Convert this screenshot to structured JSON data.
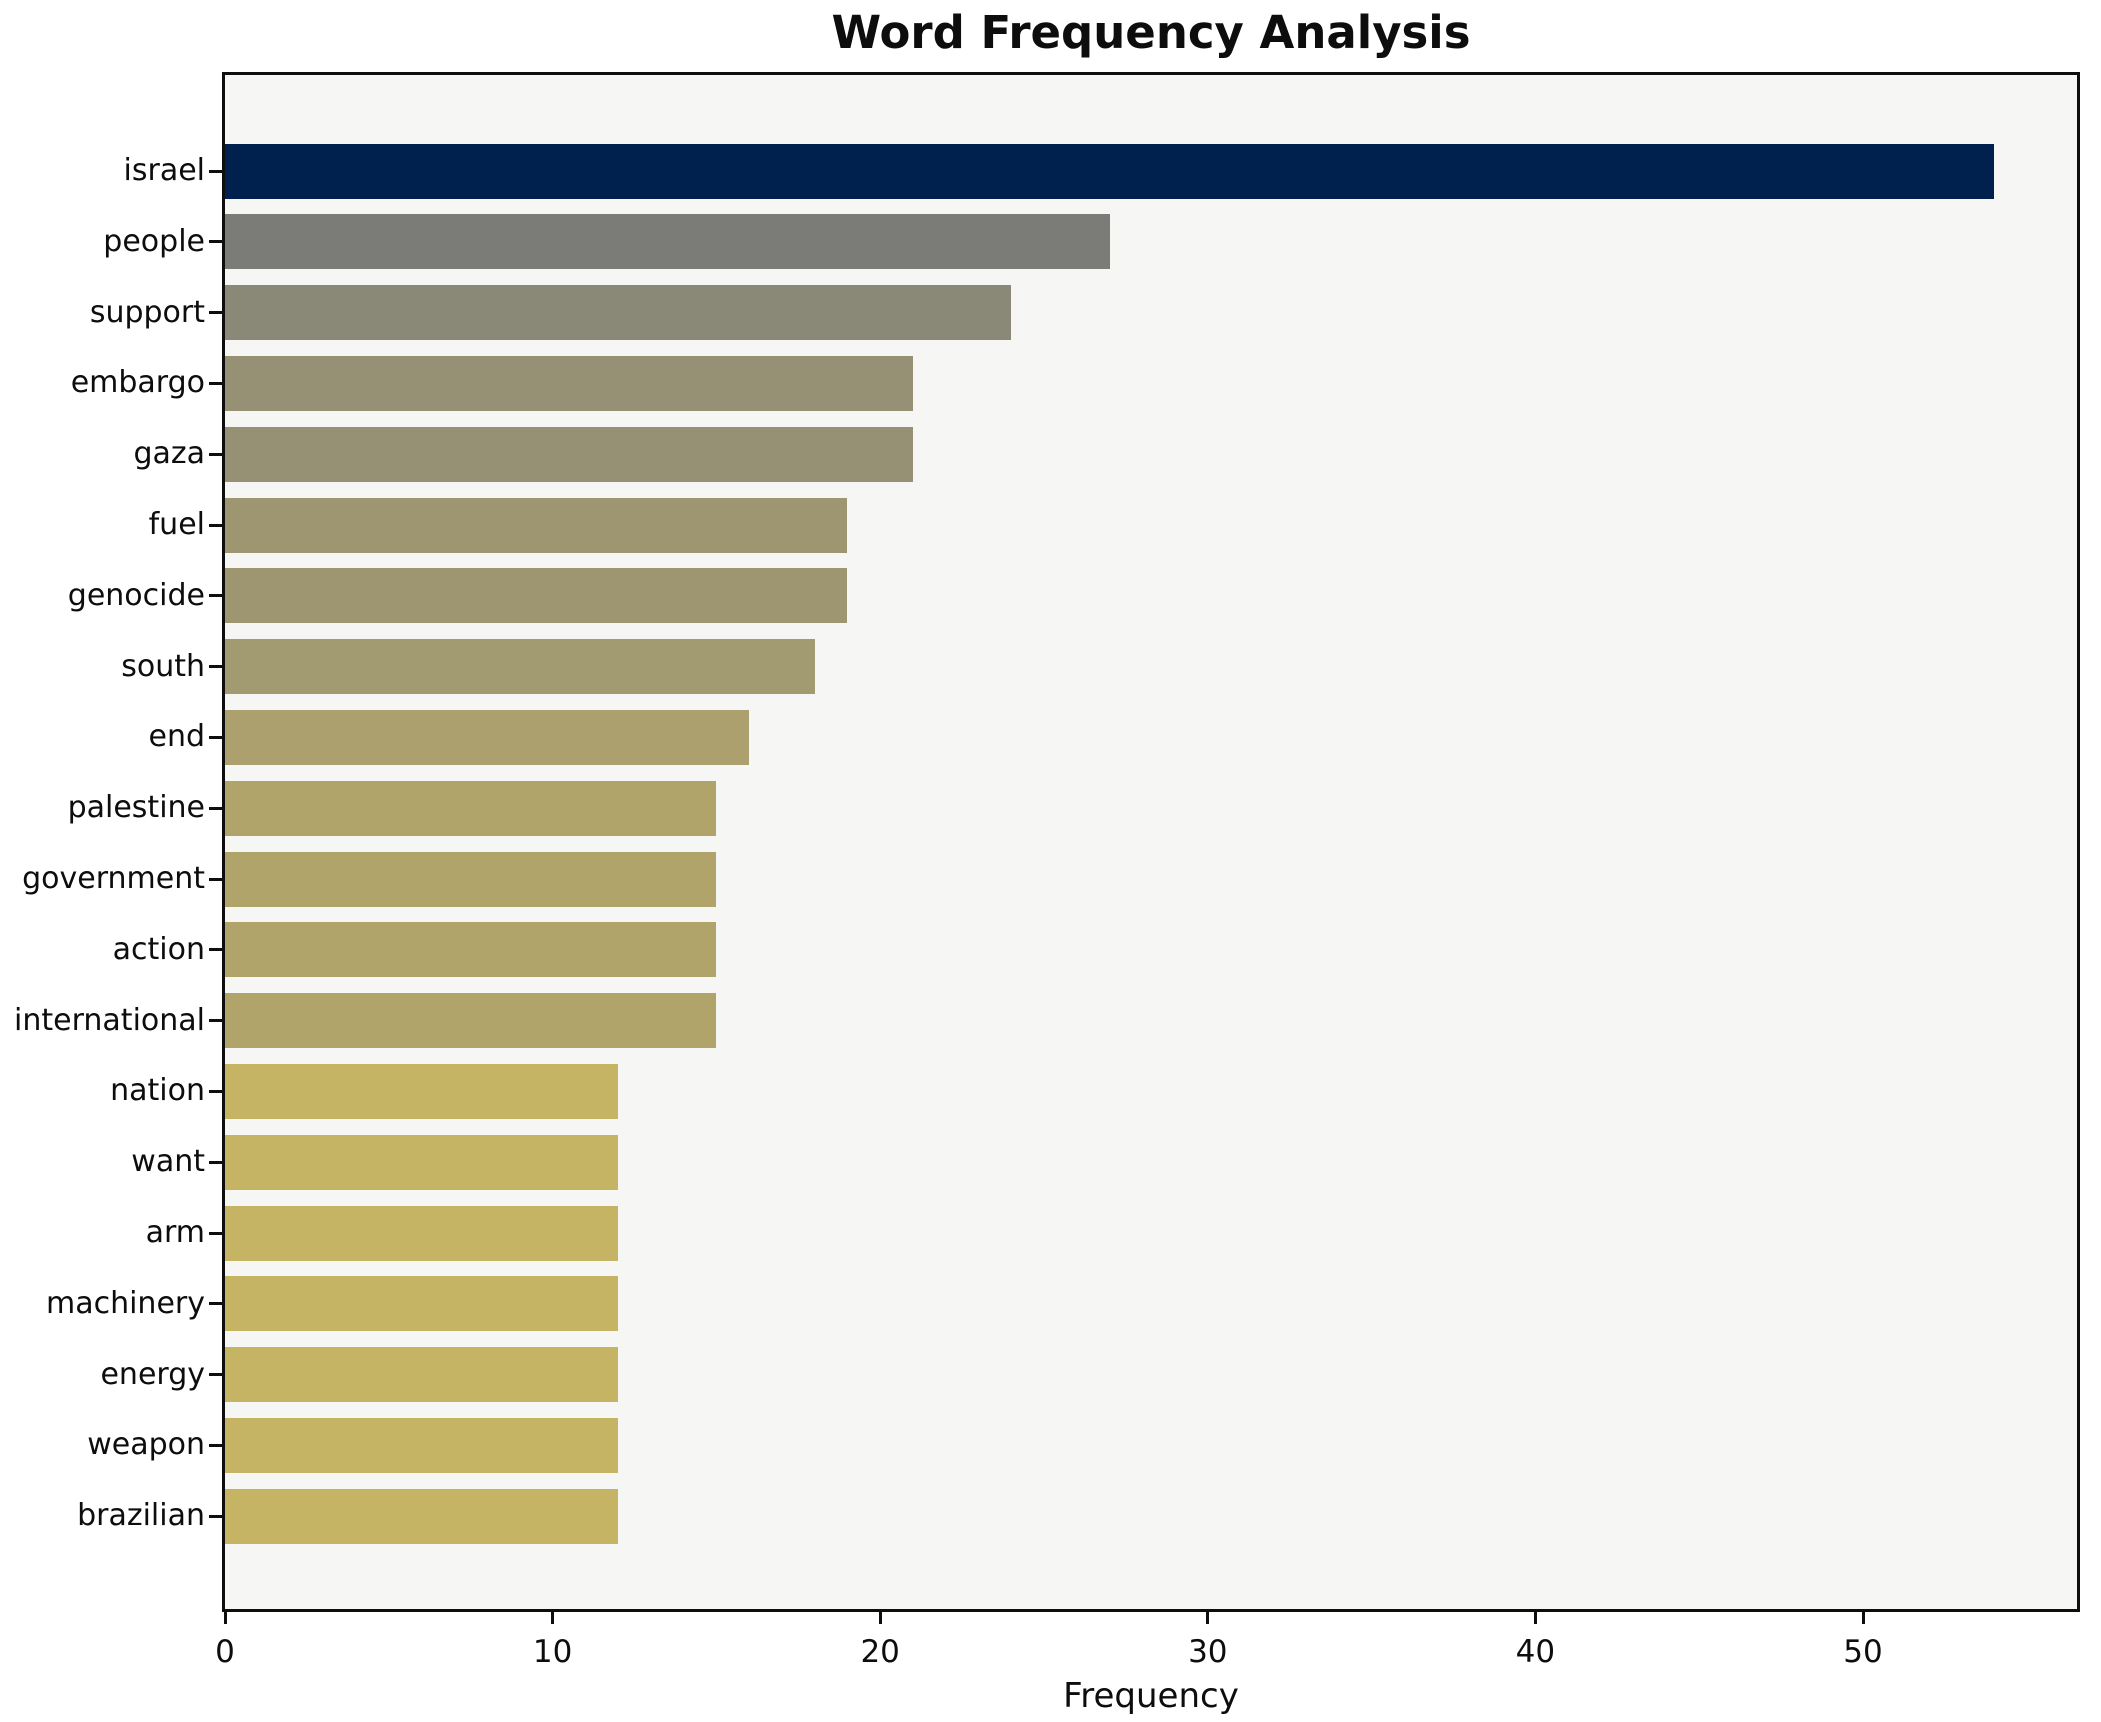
{
  "title": "Word Frequency Analysis",
  "xlabel": "Frequency",
  "chart_data": {
    "type": "bar",
    "orientation": "horizontal",
    "title": "Word Frequency Analysis",
    "xlabel": "Frequency",
    "ylabel": "",
    "grid": false,
    "legend": false,
    "plot_background": "#f6f6f5",
    "figure_background": "#ffffff",
    "xlim": [
      0,
      56.7
    ],
    "xticks": [
      0,
      10,
      20,
      30,
      40,
      50
    ],
    "categories": [
      "israel",
      "people",
      "support",
      "embargo",
      "gaza",
      "fuel",
      "genocide",
      "south",
      "end",
      "palestine",
      "government",
      "action",
      "international",
      "nation",
      "want",
      "arm",
      "machinery",
      "energy",
      "weapon",
      "brazilian"
    ],
    "values": [
      54,
      27,
      24,
      21,
      21,
      19,
      19,
      18,
      16,
      15,
      15,
      15,
      15,
      12,
      12,
      12,
      12,
      12,
      12,
      12
    ],
    "bar_colors": [
      "#00204d",
      "#7b7b78",
      "#8a8877",
      "#969174",
      "#969174",
      "#9d9670",
      "#9d9670",
      "#a29a71",
      "#aca16e",
      "#b0a46b",
      "#b0a46b",
      "#b0a46b",
      "#b0a46b",
      "#c4b464",
      "#c4b464",
      "#c4b464",
      "#c4b464",
      "#c4b464",
      "#c4b464",
      "#c4b464"
    ]
  }
}
